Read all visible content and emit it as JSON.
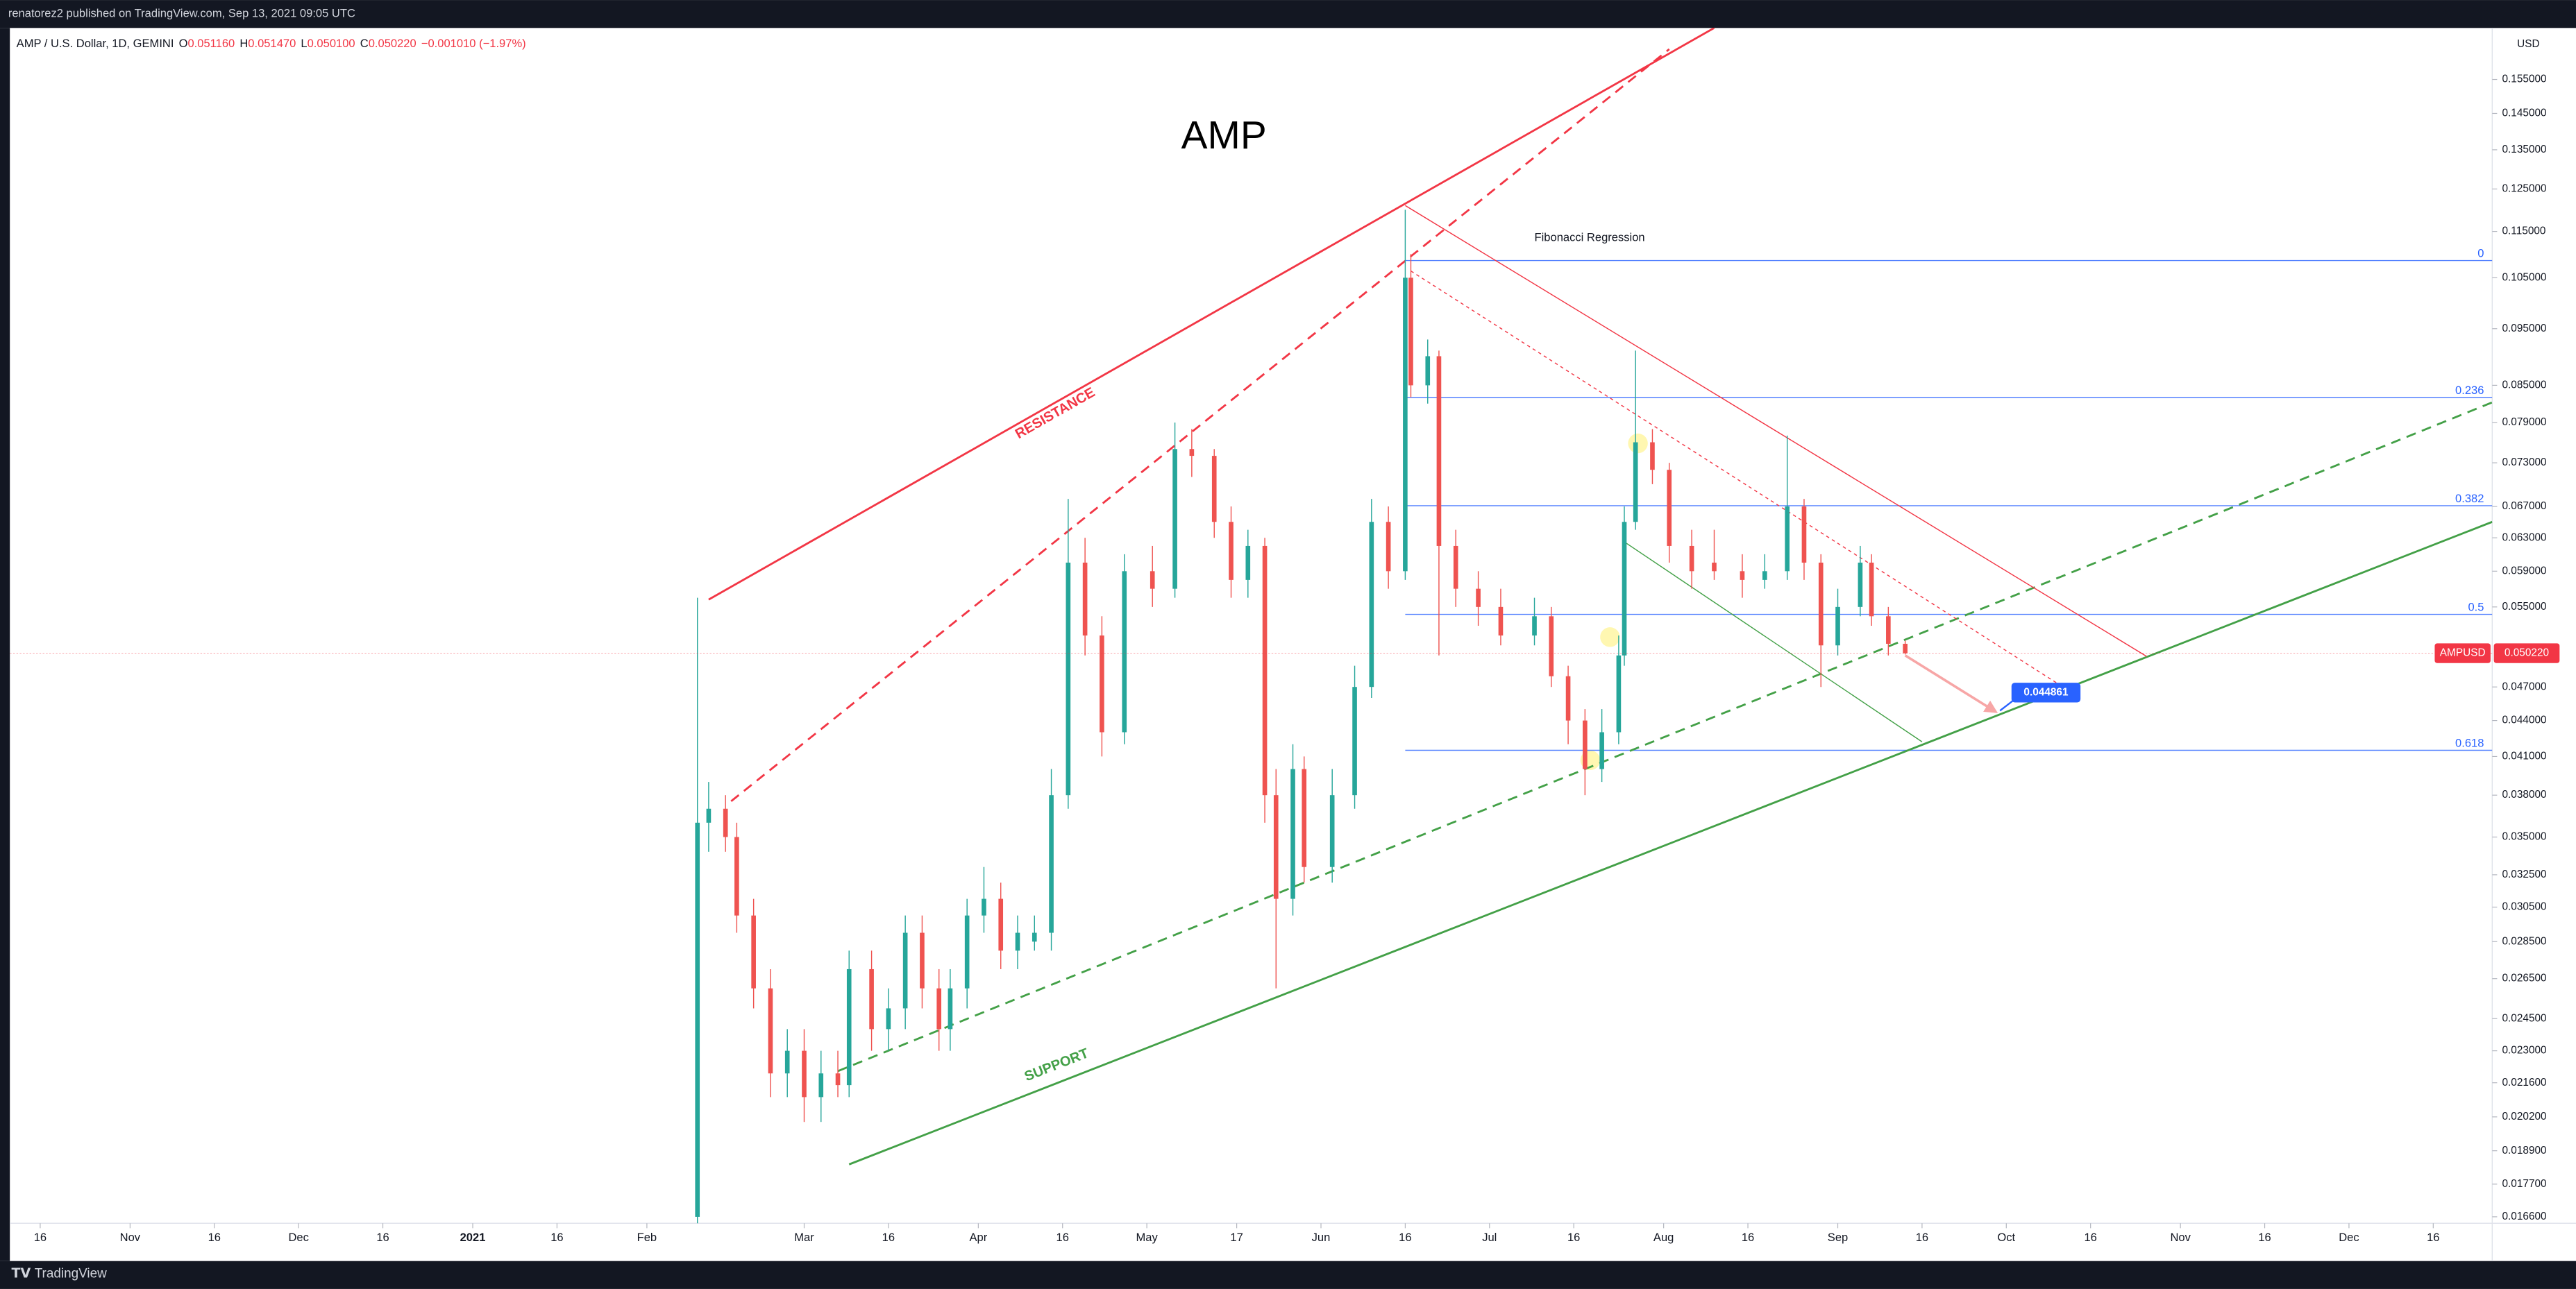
{
  "header": {
    "publisher": "renatorez2 published on TradingView.com, Sep 13, 2021 09:05 UTC"
  },
  "symbol_bar": {
    "symbol": "AMP / U.S. Dollar, 1D, GEMINI",
    "open_key": "O",
    "open": "0.051160",
    "high_key": "H",
    "high": "0.051470",
    "low_key": "L",
    "low": "0.050100",
    "close_key": "C",
    "close": "0.050220",
    "change": "−0.001010 (−1.97%)"
  },
  "footer": {
    "brand": "TradingView"
  },
  "chart_data": {
    "type": "candlestick",
    "title": "AMP",
    "up_color": "#26a69a",
    "down_color": "#ef5350",
    "x": [
      132,
      134,
      137,
      139,
      142,
      145,
      148,
      151,
      154,
      157,
      159,
      163,
      166,
      169,
      172,
      175,
      177,
      180,
      183,
      186,
      189,
      192,
      195,
      198,
      201,
      204,
      208,
      213,
      217,
      220,
      224,
      227,
      230,
      233,
      235,
      238,
      240,
      245,
      249,
      252,
      255,
      258,
      259,
      262,
      264,
      267,
      271,
      275,
      281,
      284,
      287,
      290,
      293,
      296,
      297,
      299,
      302,
      305,
      309,
      313,
      318,
      322,
      326,
      329,
      332,
      335,
      339,
      341,
      344,
      347
    ],
    "open": [
      0.0166,
      0.036,
      0.037,
      0.035,
      0.03,
      0.026,
      0.022,
      0.023,
      0.021,
      0.022,
      0.0215,
      0.027,
      0.024,
      0.025,
      0.029,
      0.026,
      0.024,
      0.026,
      0.03,
      0.031,
      0.028,
      0.0285,
      0.029,
      0.038,
      0.06,
      0.052,
      0.043,
      0.059,
      0.057,
      0.075,
      0.074,
      0.065,
      0.058,
      0.062,
      0.038,
      0.031,
      0.04,
      0.033,
      0.038,
      0.047,
      0.065,
      0.059,
      0.105,
      0.085,
      0.09,
      0.062,
      0.057,
      0.055,
      0.052,
      0.054,
      0.048,
      0.044,
      0.04,
      0.043,
      0.05,
      0.065,
      0.076,
      0.072,
      0.062,
      0.06,
      0.059,
      0.058,
      0.059,
      0.067,
      0.06,
      0.051,
      0.055,
      0.06,
      0.054,
      0.05116
    ],
    "high": [
      0.056,
      0.039,
      0.038,
      0.036,
      0.031,
      0.027,
      0.024,
      0.024,
      0.023,
      0.023,
      0.028,
      0.028,
      0.026,
      0.03,
      0.03,
      0.027,
      0.027,
      0.031,
      0.033,
      0.032,
      0.03,
      0.03,
      0.04,
      0.068,
      0.063,
      0.054,
      0.061,
      0.062,
      0.079,
      0.078,
      0.075,
      0.067,
      0.064,
      0.063,
      0.04,
      0.042,
      0.041,
      0.04,
      0.049,
      0.068,
      0.067,
      0.12,
      0.11,
      0.093,
      0.091,
      0.064,
      0.059,
      0.057,
      0.056,
      0.055,
      0.049,
      0.045,
      0.045,
      0.052,
      0.067,
      0.091,
      0.078,
      0.073,
      0.064,
      0.064,
      0.061,
      0.061,
      0.077,
      0.068,
      0.061,
      0.057,
      0.062,
      0.061,
      0.055,
      0.05147
    ],
    "low": [
      0.0155,
      0.034,
      0.034,
      0.029,
      0.025,
      0.021,
      0.021,
      0.02,
      0.02,
      0.021,
      0.021,
      0.023,
      0.023,
      0.024,
      0.025,
      0.023,
      0.023,
      0.025,
      0.029,
      0.027,
      0.027,
      0.028,
      0.028,
      0.037,
      0.05,
      0.041,
      0.042,
      0.055,
      0.056,
      0.071,
      0.063,
      0.056,
      0.056,
      0.036,
      0.026,
      0.03,
      0.032,
      0.032,
      0.037,
      0.046,
      0.057,
      0.058,
      0.083,
      0.082,
      0.05,
      0.055,
      0.053,
      0.051,
      0.051,
      0.047,
      0.042,
      0.038,
      0.039,
      0.042,
      0.049,
      0.064,
      0.07,
      0.06,
      0.057,
      0.058,
      0.056,
      0.057,
      0.058,
      0.058,
      0.047,
      0.05,
      0.054,
      0.053,
      0.05,
      0.0501
    ],
    "close": [
      0.036,
      0.037,
      0.035,
      0.03,
      0.026,
      0.022,
      0.023,
      0.021,
      0.022,
      0.0215,
      0.027,
      0.024,
      0.025,
      0.029,
      0.026,
      0.024,
      0.026,
      0.03,
      0.031,
      0.028,
      0.029,
      0.029,
      0.038,
      0.06,
      0.052,
      0.043,
      0.059,
      0.057,
      0.075,
      0.074,
      0.065,
      0.058,
      0.062,
      0.038,
      0.031,
      0.04,
      0.033,
      0.038,
      0.047,
      0.065,
      0.059,
      0.105,
      0.085,
      0.09,
      0.062,
      0.057,
      0.055,
      0.052,
      0.054,
      0.048,
      0.044,
      0.04,
      0.043,
      0.05,
      0.065,
      0.076,
      0.072,
      0.062,
      0.059,
      0.059,
      0.058,
      0.059,
      0.067,
      0.06,
      0.051,
      0.055,
      0.06,
      0.054,
      0.05116,
      0.05022
    ],
    "xlim": [
      9.6,
      451.5
    ],
    "xticks": [
      {
        "value": 15,
        "label": "16"
      },
      {
        "value": 31,
        "label": "Nov"
      },
      {
        "value": 46,
        "label": "16"
      },
      {
        "value": 61,
        "label": "Dec"
      },
      {
        "value": 76,
        "label": "16"
      },
      {
        "value": 92,
        "label": "2021"
      },
      {
        "value": 107,
        "label": "16"
      },
      {
        "value": 123,
        "label": "Feb"
      },
      {
        "value": 151,
        "label": "Mar"
      },
      {
        "value": 166,
        "label": "16"
      },
      {
        "value": 182,
        "label": "Apr"
      },
      {
        "value": 197,
        "label": "16"
      },
      {
        "value": 212,
        "label": "May"
      },
      {
        "value": 228,
        "label": "17"
      },
      {
        "value": 243,
        "label": "Jun"
      },
      {
        "value": 258,
        "label": "16"
      },
      {
        "value": 273,
        "label": "Jul"
      },
      {
        "value": 288,
        "label": "16"
      },
      {
        "value": 304,
        "label": "Aug"
      },
      {
        "value": 319,
        "label": "16"
      },
      {
        "value": 335,
        "label": "Sep"
      },
      {
        "value": 350,
        "label": "16"
      },
      {
        "value": 365,
        "label": "Oct"
      },
      {
        "value": 380,
        "label": "16"
      },
      {
        "value": 396,
        "label": "Nov"
      },
      {
        "value": 411,
        "label": "16"
      },
      {
        "value": 426,
        "label": "Dec"
      },
      {
        "value": 441,
        "label": "16"
      }
    ],
    "ylim": [
      0.01639,
      0.1715
    ],
    "log_scale": true,
    "grid": false,
    "y_unit": "USD",
    "yticks": [
      {
        "value": 0.0166,
        "label": "0.016600"
      },
      {
        "value": 0.0177,
        "label": "0.017700"
      },
      {
        "value": 0.0189,
        "label": "0.018900"
      },
      {
        "value": 0.0202,
        "label": "0.020200"
      },
      {
        "value": 0.0216,
        "label": "0.021600"
      },
      {
        "value": 0.023,
        "label": "0.023000"
      },
      {
        "value": 0.0245,
        "label": "0.024500"
      },
      {
        "value": 0.0265,
        "label": "0.026500"
      },
      {
        "value": 0.0285,
        "label": "0.028500"
      },
      {
        "value": 0.0305,
        "label": "0.030500"
      },
      {
        "value": 0.0325,
        "label": "0.032500"
      },
      {
        "value": 0.035,
        "label": "0.035000"
      },
      {
        "value": 0.038,
        "label": "0.038000"
      },
      {
        "value": 0.041,
        "label": "0.041000"
      },
      {
        "value": 0.044,
        "label": "0.044000"
      },
      {
        "value": 0.047,
        "label": "0.047000"
      },
      {
        "value": 0.055,
        "label": "0.055000"
      },
      {
        "value": 0.059,
        "label": "0.059000"
      },
      {
        "value": 0.063,
        "label": "0.063000"
      },
      {
        "value": 0.067,
        "label": "0.067000"
      },
      {
        "value": 0.073,
        "label": "0.073000"
      },
      {
        "value": 0.079,
        "label": "0.079000"
      },
      {
        "value": 0.085,
        "label": "0.085000"
      },
      {
        "value": 0.095,
        "label": "0.095000"
      },
      {
        "value": 0.105,
        "label": "0.105000"
      },
      {
        "value": 0.115,
        "label": "0.115000"
      },
      {
        "value": 0.125,
        "label": "0.125000"
      },
      {
        "value": 0.135,
        "label": "0.135000"
      },
      {
        "value": 0.145,
        "label": "0.145000"
      },
      {
        "value": 0.155,
        "label": "0.155000"
      }
    ],
    "price_tag": {
      "symbol": "AMPUSD",
      "label": "0.050220"
    },
    "trend_lines": [
      {
        "label": "RESISTANCE",
        "color": "#f23645",
        "style": "solid",
        "x": [
          134,
          313
        ],
        "y": [
          0.0558,
          0.1715
        ]
      },
      {
        "color": "#f23645",
        "style": "dashed",
        "x": [
          138,
          305
        ],
        "y": [
          0.03755,
          0.1645
        ]
      },
      {
        "label": "SUPPORT",
        "color": "#43a047",
        "style": "solid",
        "x": [
          159,
          451.5
        ],
        "y": [
          0.0184,
          0.065
        ]
      },
      {
        "color": "#43a047",
        "style": "dashed",
        "x": [
          157,
          451.5
        ],
        "y": [
          0.0221,
          0.0822
        ]
      },
      {
        "color": "#f23645",
        "style": "thin",
        "x": [
          258,
          390
        ],
        "y": [
          0.121,
          0.0499
        ]
      },
      {
        "color": "#f23645",
        "style": "dotted",
        "x": [
          259,
          376
        ],
        "y": [
          0.1064,
          0.0467
        ]
      },
      {
        "color": "#43a047",
        "style": "thin",
        "x": [
          297,
          350
        ],
        "y": [
          0.0625,
          0.0422
        ]
      }
    ],
    "fibonacci": {
      "title": "Fibonacci Regression",
      "color": "#2962ff",
      "x": [
        258,
        451.5
      ],
      "levels": [
        {
          "ratio": 0,
          "price": 0.1086
        },
        {
          "ratio": 0.236,
          "price": 0.083
        },
        {
          "ratio": 0.382,
          "price": 0.0671
        },
        {
          "ratio": 0.5,
          "price": 0.0542
        },
        {
          "ratio": 0.618,
          "price": 0.0415
        }
      ]
    },
    "target": {
      "value": 0.044861,
      "x": [
        347,
        363
      ],
      "y": [
        0.05,
        0.0448
      ]
    }
  }
}
